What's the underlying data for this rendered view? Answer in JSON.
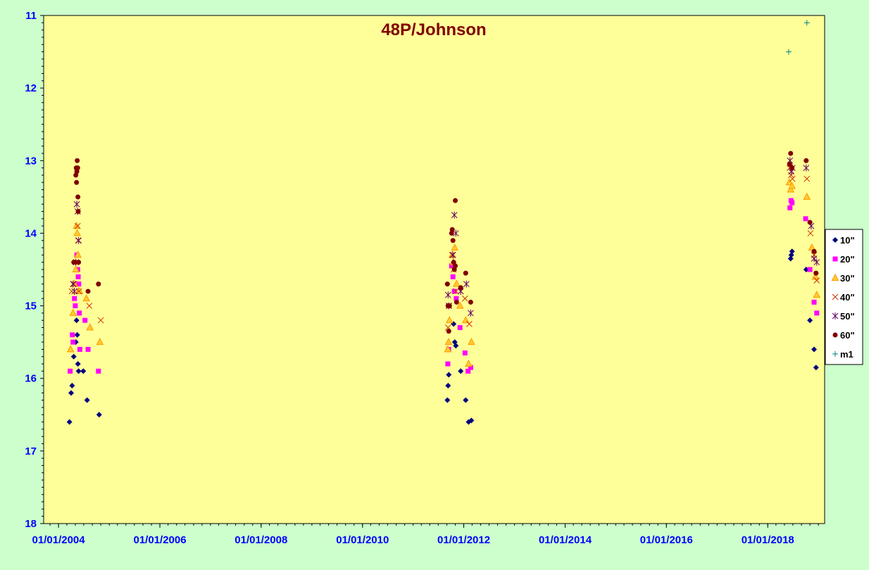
{
  "chart_data": {
    "type": "scatter",
    "title": "48P/Johnson",
    "xlabel": "",
    "ylabel": "",
    "x_range": [
      "2003-09-16",
      "2019-02-15"
    ],
    "x_ticks": [
      "01/01/2004",
      "01/01/2006",
      "01/01/2008",
      "01/01/2010",
      "01/01/2012",
      "01/01/2014",
      "01/01/2016",
      "01/01/2018"
    ],
    "ylim": [
      11,
      18
    ],
    "y_inverted": true,
    "y_ticks": [
      "11",
      "12",
      "13",
      "14",
      "15",
      "16",
      "17",
      "18"
    ],
    "grid": false,
    "legend_position": "right",
    "colors": {
      "background": "#ccffcc",
      "plot_area": "#ffff99",
      "axis_text": "#0000ff",
      "title": "#800000"
    },
    "series": [
      {
        "name": "10\"",
        "marker": "diamond",
        "color": "#000080",
        "points": [
          [
            "2004-03-20",
            16.6
          ],
          [
            "2004-04-01",
            16.2
          ],
          [
            "2004-04-08",
            16.1
          ],
          [
            "2004-04-20",
            15.7
          ],
          [
            "2004-05-05",
            15.5
          ],
          [
            "2004-05-10",
            15.2
          ],
          [
            "2004-05-15",
            15.4
          ],
          [
            "2004-05-20",
            15.8
          ],
          [
            "2004-05-25",
            15.9
          ],
          [
            "2004-06-28",
            15.9
          ],
          [
            "2004-07-25",
            16.3
          ],
          [
            "2004-10-20",
            16.5
          ],
          [
            "2011-09-05",
            16.3
          ],
          [
            "2011-09-10",
            16.1
          ],
          [
            "2011-09-15",
            15.95
          ],
          [
            "2011-10-20",
            15.25
          ],
          [
            "2011-10-28",
            15.5
          ],
          [
            "2011-11-05",
            15.55
          ],
          [
            "2011-12-10",
            15.9
          ],
          [
            "2012-01-15",
            16.3
          ],
          [
            "2012-02-05",
            16.6
          ],
          [
            "2012-02-25",
            16.58
          ],
          [
            "2018-06-15",
            14.35
          ],
          [
            "2018-06-20",
            14.3
          ],
          [
            "2018-06-25",
            14.25
          ],
          [
            "2018-10-05",
            14.5
          ],
          [
            "2018-11-01",
            15.2
          ],
          [
            "2018-12-01",
            15.6
          ],
          [
            "2018-12-15",
            15.85
          ]
        ]
      },
      {
        "name": "20\"",
        "marker": "square",
        "color": "#ff00ff",
        "points": [
          [
            "2004-03-25",
            15.9
          ],
          [
            "2004-04-10",
            15.4
          ],
          [
            "2004-04-15",
            15.5
          ],
          [
            "2004-04-25",
            14.9
          ],
          [
            "2004-05-01",
            15.0
          ],
          [
            "2004-05-12",
            14.3
          ],
          [
            "2004-05-18",
            14.5
          ],
          [
            "2004-05-22",
            14.6
          ],
          [
            "2004-05-26",
            14.7
          ],
          [
            "2004-05-30",
            15.1
          ],
          [
            "2004-06-03",
            15.6
          ],
          [
            "2004-07-10",
            15.2
          ],
          [
            "2004-08-01",
            15.6
          ],
          [
            "2004-10-15",
            15.9
          ],
          [
            "2011-09-08",
            15.8
          ],
          [
            "2011-09-14",
            15.6
          ],
          [
            "2011-10-05",
            14.45
          ],
          [
            "2011-10-15",
            14.6
          ],
          [
            "2011-10-25",
            14.8
          ],
          [
            "2011-11-08",
            14.9
          ],
          [
            "2011-12-05",
            15.3
          ],
          [
            "2012-01-10",
            15.65
          ],
          [
            "2012-02-01",
            15.9
          ],
          [
            "2012-02-20",
            15.85
          ],
          [
            "2018-06-10",
            13.65
          ],
          [
            "2018-06-18",
            13.55
          ],
          [
            "2018-06-25",
            13.58
          ],
          [
            "2018-10-01",
            13.8
          ],
          [
            "2018-11-01",
            14.5
          ],
          [
            "2018-12-01",
            14.95
          ],
          [
            "2018-12-20",
            15.1
          ]
        ]
      },
      {
        "name": "30\"",
        "marker": "triangle",
        "color": "#ff9900",
        "points": [
          [
            "2004-03-28",
            15.6
          ],
          [
            "2004-04-15",
            15.1
          ],
          [
            "2004-04-25",
            14.7
          ],
          [
            "2004-05-05",
            14.5
          ],
          [
            "2004-05-10",
            13.9
          ],
          [
            "2004-05-15",
            14.0
          ],
          [
            "2004-05-20",
            14.3
          ],
          [
            "2004-05-25",
            14.8
          ],
          [
            "2004-06-01",
            14.8
          ],
          [
            "2004-07-20",
            14.9
          ],
          [
            "2004-08-15",
            15.3
          ],
          [
            "2004-10-25",
            15.5
          ],
          [
            "2011-09-08",
            15.6
          ],
          [
            "2011-09-14",
            15.5
          ],
          [
            "2011-09-20",
            15.2
          ],
          [
            "2011-10-10",
            14.3
          ],
          [
            "2011-10-18",
            14.4
          ],
          [
            "2011-10-28",
            14.2
          ],
          [
            "2011-11-10",
            14.7
          ],
          [
            "2011-12-05",
            15.0
          ],
          [
            "2012-01-15",
            15.2
          ],
          [
            "2012-02-05",
            15.8
          ],
          [
            "2012-02-25",
            15.5
          ],
          [
            "2018-06-05",
            13.3
          ],
          [
            "2018-06-15",
            13.4
          ],
          [
            "2018-06-25",
            13.35
          ],
          [
            "2018-10-10",
            13.5
          ],
          [
            "2018-11-15",
            14.2
          ],
          [
            "2018-12-10",
            14.6
          ],
          [
            "2018-12-20",
            14.85
          ]
        ]
      },
      {
        "name": "40\"",
        "marker": "x",
        "color": "#cc3300",
        "points": [
          [
            "2004-04-05",
            14.8
          ],
          [
            "2004-04-20",
            14.7
          ],
          [
            "2004-05-05",
            14.4
          ],
          [
            "2004-05-12",
            13.6
          ],
          [
            "2004-05-18",
            13.9
          ],
          [
            "2004-05-22",
            14.1
          ],
          [
            "2004-05-28",
            14.8
          ],
          [
            "2004-08-10",
            15.0
          ],
          [
            "2004-11-01",
            15.2
          ],
          [
            "2011-09-10",
            15.3
          ],
          [
            "2011-09-18",
            15.0
          ],
          [
            "2011-10-10",
            14.3
          ],
          [
            "2011-10-20",
            14.5
          ],
          [
            "2011-11-05",
            14.8
          ],
          [
            "2011-12-10",
            14.8
          ],
          [
            "2012-01-10",
            14.9
          ],
          [
            "2012-02-10",
            15.25
          ],
          [
            "2018-06-08",
            13.1
          ],
          [
            "2018-06-18",
            13.2
          ],
          [
            "2018-06-28",
            13.25
          ],
          [
            "2018-10-10",
            13.25
          ],
          [
            "2018-11-05",
            14.0
          ],
          [
            "2018-12-01",
            14.3
          ],
          [
            "2018-12-20",
            14.65
          ]
        ]
      },
      {
        "name": "50\"",
        "marker": "star",
        "color": "#660066",
        "points": [
          [
            "2004-04-15",
            14.7
          ],
          [
            "2004-04-25",
            14.8
          ],
          [
            "2004-05-05",
            14.4
          ],
          [
            "2004-05-12",
            13.6
          ],
          [
            "2004-05-18",
            13.7
          ],
          [
            "2004-05-25",
            14.1
          ],
          [
            "2011-09-10",
            14.85
          ],
          [
            "2011-09-15",
            15.0
          ],
          [
            "2011-10-15",
            14.3
          ],
          [
            "2011-10-25",
            13.75
          ],
          [
            "2011-11-05",
            14.0
          ],
          [
            "2011-12-10",
            14.8
          ],
          [
            "2012-01-20",
            14.7
          ],
          [
            "2012-02-20",
            15.1
          ],
          [
            "2018-06-10",
            13.0
          ],
          [
            "2018-06-20",
            13.15
          ],
          [
            "2018-06-28",
            13.1
          ],
          [
            "2018-10-05",
            13.1
          ],
          [
            "2018-11-10",
            13.9
          ],
          [
            "2018-12-01",
            14.35
          ],
          [
            "2018-12-20",
            14.4
          ]
        ]
      },
      {
        "name": "60\"",
        "marker": "circle",
        "color": "#800000",
        "points": [
          [
            "2004-04-20",
            14.4
          ],
          [
            "2004-05-01",
            14.4
          ],
          [
            "2004-05-05",
            13.2
          ],
          [
            "2004-05-08",
            13.1
          ],
          [
            "2004-05-10",
            13.3
          ],
          [
            "2004-05-12",
            13.15
          ],
          [
            "2004-05-15",
            13.0
          ],
          [
            "2004-05-18",
            13.1
          ],
          [
            "2004-05-20",
            13.5
          ],
          [
            "2004-05-22",
            13.7
          ],
          [
            "2004-05-25",
            14.4
          ],
          [
            "2004-08-01",
            14.8
          ],
          [
            "2004-10-15",
            14.7
          ],
          [
            "2011-09-05",
            14.7
          ],
          [
            "2011-09-10",
            15.0
          ],
          [
            "2011-09-15",
            15.35
          ],
          [
            "2011-09-20",
            15.0
          ],
          [
            "2011-10-05",
            14.0
          ],
          [
            "2011-10-10",
            13.95
          ],
          [
            "2011-10-15",
            14.1
          ],
          [
            "2011-10-20",
            14.4
          ],
          [
            "2011-10-25",
            14.5
          ],
          [
            "2011-11-01",
            14.45
          ],
          [
            "2011-11-10",
            14.95
          ],
          [
            "2011-12-10",
            14.75
          ],
          [
            "2012-01-15",
            14.55
          ],
          [
            "2012-02-20",
            14.95
          ],
          [
            "2011-11-01",
            13.55
          ],
          [
            "2018-06-08",
            13.05
          ],
          [
            "2018-06-15",
            12.9
          ],
          [
            "2018-06-25",
            13.1
          ],
          [
            "2018-10-05",
            13.0
          ],
          [
            "2018-11-01",
            13.85
          ],
          [
            "2018-12-01",
            14.25
          ],
          [
            "2018-12-15",
            14.55
          ]
        ]
      },
      {
        "name": "m1",
        "marker": "plus",
        "color": "#008080",
        "points": [
          [
            "2018-06-01",
            11.5
          ],
          [
            "2018-10-10",
            11.1
          ]
        ]
      }
    ]
  }
}
